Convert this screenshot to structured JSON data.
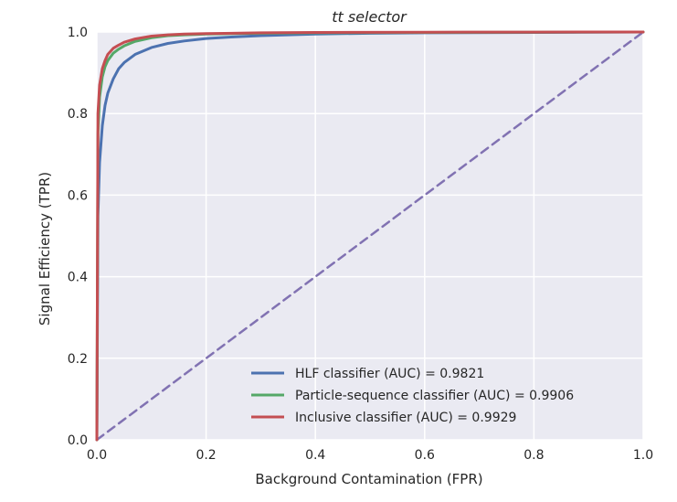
{
  "chart_data": {
    "type": "line",
    "title": "tt selector",
    "xlabel": "Background Contamination (FPR)",
    "ylabel": "Signal Efficiency (TPR)",
    "xlim": [
      0.0,
      1.0
    ],
    "ylim": [
      0.0,
      1.0
    ],
    "xticks": [
      "0.0",
      "0.2",
      "0.4",
      "0.6",
      "0.8",
      "1.0"
    ],
    "yticks": [
      "0.0",
      "0.2",
      "0.4",
      "0.6",
      "0.8",
      "1.0"
    ],
    "grid": true,
    "legend_position": "lower-right",
    "background": "#eaeaf2",
    "series": [
      {
        "name": "HLF classifier (AUC) = 0.9821",
        "color": "#4c72b0",
        "x": [
          0,
          0.002,
          0.005,
          0.01,
          0.015,
          0.02,
          0.03,
          0.04,
          0.05,
          0.07,
          0.1,
          0.13,
          0.16,
          0.2,
          0.25,
          0.3,
          0.4,
          0.5,
          0.6,
          0.8,
          1.0
        ],
        "y": [
          0,
          0.55,
          0.68,
          0.77,
          0.82,
          0.85,
          0.885,
          0.91,
          0.925,
          0.945,
          0.962,
          0.972,
          0.978,
          0.984,
          0.988,
          0.991,
          0.995,
          0.997,
          0.998,
          0.999,
          1.0
        ]
      },
      {
        "name": "Particle-sequence classifier (AUC) = 0.9906",
        "color": "#55a868",
        "x": [
          0,
          0.002,
          0.005,
          0.01,
          0.015,
          0.02,
          0.03,
          0.04,
          0.05,
          0.07,
          0.1,
          0.13,
          0.16,
          0.2,
          0.3,
          0.4,
          0.6,
          0.8,
          1.0
        ],
        "y": [
          0,
          0.75,
          0.84,
          0.89,
          0.915,
          0.93,
          0.948,
          0.958,
          0.966,
          0.977,
          0.986,
          0.991,
          0.993,
          0.995,
          0.997,
          0.998,
          0.999,
          0.9995,
          1.0
        ]
      },
      {
        "name": "Inclusive classifier (AUC) = 0.9929",
        "color": "#c44e52",
        "x": [
          0,
          0.002,
          0.005,
          0.01,
          0.015,
          0.02,
          0.03,
          0.04,
          0.05,
          0.07,
          0.1,
          0.13,
          0.16,
          0.2,
          0.3,
          0.4,
          0.6,
          0.8,
          1.0
        ],
        "y": [
          0,
          0.8,
          0.87,
          0.91,
          0.93,
          0.945,
          0.96,
          0.968,
          0.975,
          0.983,
          0.99,
          0.993,
          0.995,
          0.996,
          0.998,
          0.999,
          0.9995,
          0.9998,
          1.0
        ]
      },
      {
        "name": "",
        "color": "#8172b2",
        "dashed": true,
        "x": [
          0,
          1.0
        ],
        "y": [
          0,
          1.0
        ]
      }
    ]
  }
}
